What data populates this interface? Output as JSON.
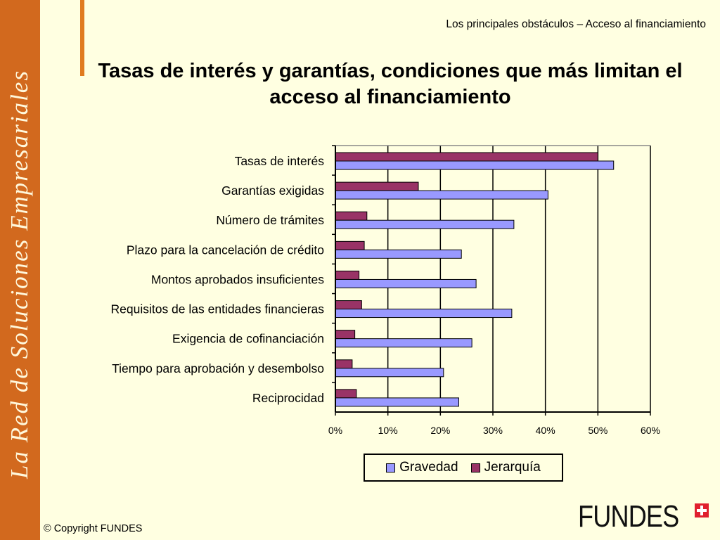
{
  "sidebar": {
    "text": "La Red de Soluciones Empresariales"
  },
  "header": {
    "subtitle": "Los principales obstáculos – Acceso al financiamiento"
  },
  "title": "Tasas de interés y garantías, condiciones que más limitan el acceso al financiamiento",
  "footer": {
    "copyright": "© Copyright FUNDES",
    "logo_text": "FUNDES"
  },
  "colors": {
    "background": "#FFFFE1",
    "sidebar": "#D2691E",
    "gravedad": "#9999FF",
    "jerarquia": "#993366",
    "logo_cross": "#E0202E"
  },
  "chart_data": {
    "type": "bar",
    "orientation": "horizontal",
    "categories": [
      "Tasas de interés",
      "Garantías exigidas",
      "Número de trámites",
      "Plazo para la cancelación de crédito",
      "Montos aprobados insuficientes",
      "Requisitos de las entidades financieras",
      "Exigencia de cofinanciación",
      "Tiempo para  aprobación y desembolso",
      "Reciprocidad"
    ],
    "series": [
      {
        "name": "Gravedad",
        "color": "#9999FF",
        "values": [
          53.0,
          40.5,
          34.0,
          24.0,
          26.8,
          33.6,
          26.0,
          20.6,
          23.5
        ]
      },
      {
        "name": "Jerarquía",
        "color": "#993366",
        "values": [
          50.0,
          15.8,
          6.0,
          5.5,
          4.5,
          5.0,
          3.7,
          3.2,
          4.0
        ]
      }
    ],
    "xlim": [
      0,
      60
    ],
    "xticks": [
      "0%",
      "10%",
      "20%",
      "30%",
      "40%",
      "50%",
      "60%"
    ],
    "grid": true,
    "legend": "bottom"
  }
}
